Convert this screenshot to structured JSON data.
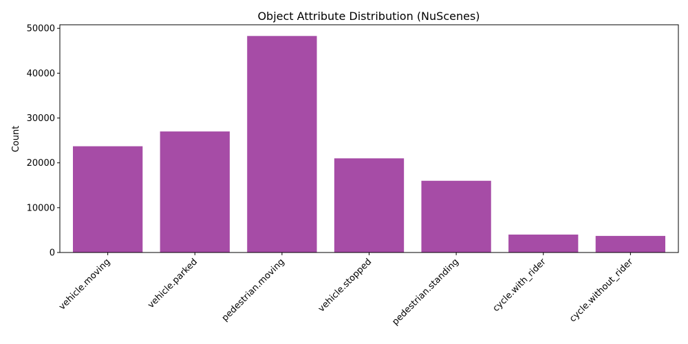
{
  "chart_data": {
    "type": "bar",
    "title": "Object Attribute Distribution (NuScenes)",
    "xlabel": "",
    "ylabel": "Count",
    "categories": [
      "vehicle.moving",
      "vehicle.parked",
      "pedestrian.moving",
      "vehicle.stopped",
      "pedestrian.standing",
      "cycle.with_rider",
      "cycle.without_rider"
    ],
    "values": [
      23700,
      27000,
      48300,
      21000,
      16000,
      4000,
      3700
    ],
    "ylim": [
      0,
      50800
    ],
    "yticks": [
      0,
      10000,
      20000,
      30000,
      40000,
      50000
    ],
    "bar_color": "#a64ca6",
    "grid": false,
    "legend": "none"
  }
}
